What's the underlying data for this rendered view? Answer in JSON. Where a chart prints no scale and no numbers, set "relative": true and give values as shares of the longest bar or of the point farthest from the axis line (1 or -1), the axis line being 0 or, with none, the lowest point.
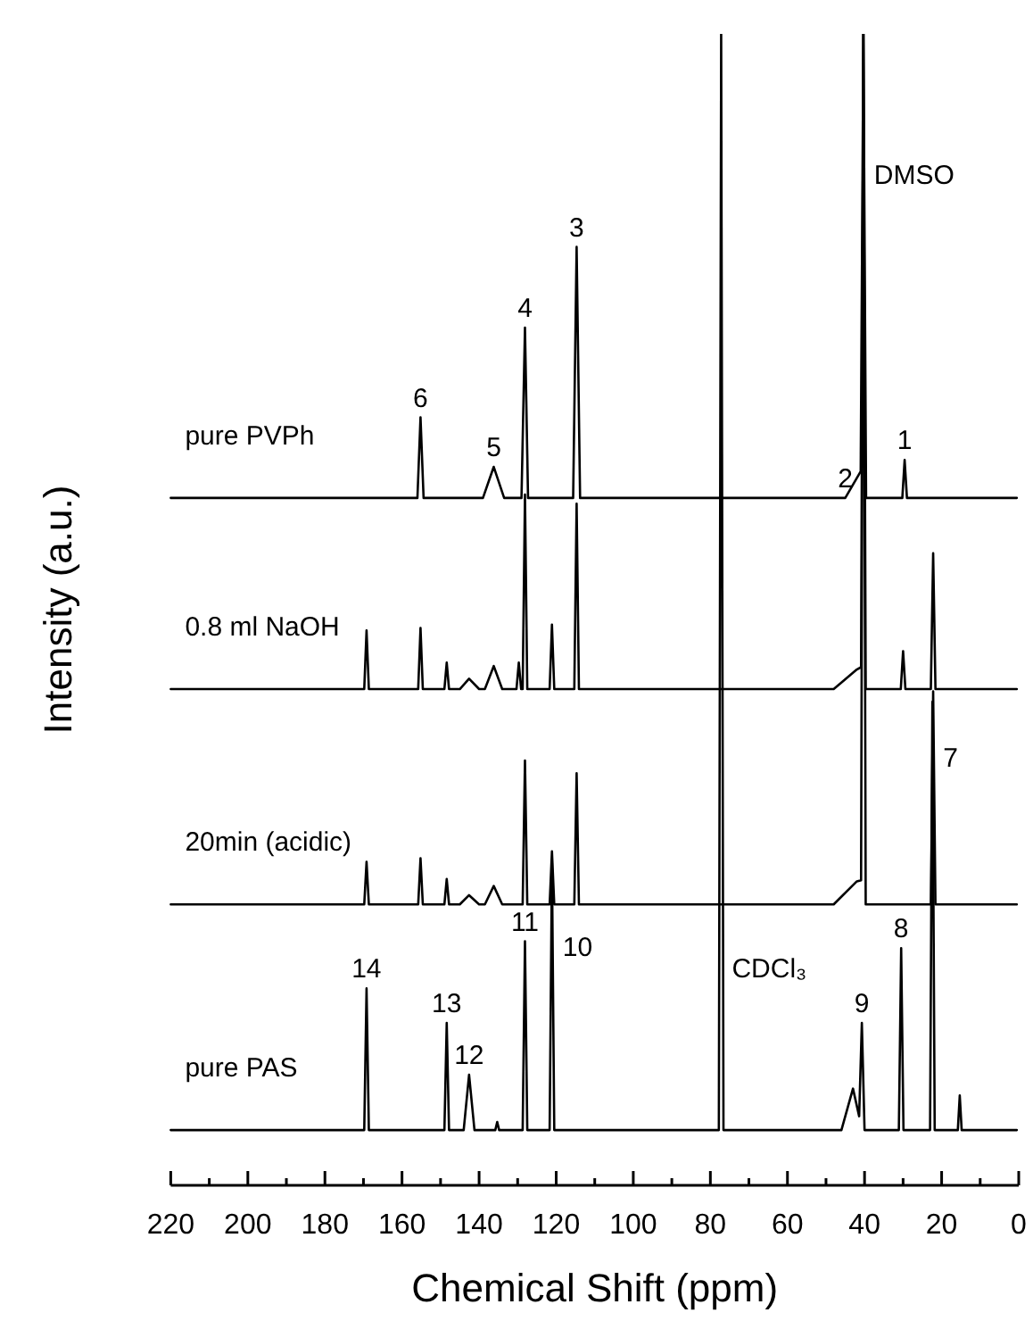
{
  "chart_data": {
    "type": "line",
    "relative": true,
    "xlabel": "Chemical Shift (ppm)",
    "ylabel": "Intensity (a.u.)",
    "xlim": [
      220,
      0
    ],
    "xticks": [
      220,
      {
        "value": 210,
        "label": null
      },
      200,
      {
        "value": 190,
        "label": null
      },
      180,
      {
        "value": 170,
        "label": null
      },
      160,
      {
        "value": 150,
        "label": null
      },
      140,
      {
        "value": 130,
        "label": null
      },
      120,
      {
        "value": 110,
        "label": null
      },
      100,
      {
        "value": 90,
        "label": null
      },
      80,
      {
        "value": 70,
        "label": null
      },
      60,
      {
        "value": 50,
        "label": null
      },
      40,
      {
        "value": 30,
        "label": null
      },
      20,
      {
        "value": 10,
        "label": null
      },
      0
    ],
    "tick_labels": "x",
    "series": [
      {
        "name": "pure PVPh",
        "color": "#000000",
        "x": [
          220,
          156,
          155.2,
          154.4,
          139,
          136.2,
          133.5,
          129,
          128.1,
          127.3,
          115.6,
          114.7,
          113.8,
          45,
          41,
          40.3,
          39.6,
          30.2,
          29.6,
          29,
          0.5
        ],
        "values": [
          0.597,
          0.597,
          0.667,
          0.597,
          0.597,
          0.624,
          0.597,
          0.597,
          0.745,
          0.597,
          0.597,
          0.815,
          0.597,
          0.597,
          0.62,
          1,
          0.597,
          0.597,
          0.63,
          0.597,
          0.597
        ]
      },
      {
        "name": "0.8 ml NaOH",
        "color": "#000000",
        "x": [
          220,
          169.8,
          169.2,
          168.6,
          155.8,
          155.2,
          154.6,
          149,
          148.4,
          147.8,
          145,
          142.6,
          140,
          138.5,
          136.2,
          134,
          130.3,
          129.7,
          129.1,
          128.7,
          128.1,
          127.5,
          121.7,
          121.1,
          120.5,
          115.3,
          114.7,
          114.1,
          48,
          42,
          40.9,
          40.3,
          39.7,
          30.6,
          30,
          29.4,
          22.8,
          22.2,
          21.6,
          0.5
        ],
        "values": [
          0.431,
          0.431,
          0.482,
          0.431,
          0.431,
          0.484,
          0.431,
          0.431,
          0.454,
          0.431,
          0.431,
          0.44,
          0.431,
          0.431,
          0.451,
          0.431,
          0.431,
          0.454,
          0.431,
          0.431,
          0.6,
          0.431,
          0.431,
          0.487,
          0.431,
          0.431,
          0.592,
          0.431,
          0.431,
          0.448,
          0.45,
          1,
          0.431,
          0.431,
          0.464,
          0.431,
          0.431,
          0.549,
          0.431,
          0.431
        ]
      },
      {
        "name": "20min (acidic)",
        "color": "#000000",
        "x": [
          220,
          169.8,
          169.2,
          168.6,
          155.8,
          155.2,
          154.6,
          149,
          148.4,
          147.8,
          145,
          142.6,
          140,
          138.5,
          136.2,
          134,
          128.7,
          128.1,
          127.5,
          121.7,
          121.1,
          120.5,
          115.3,
          114.7,
          114.1,
          48,
          42,
          40.9,
          40.3,
          39.7,
          22.8,
          22.2,
          21.6,
          0.5
        ],
        "values": [
          0.244,
          0.244,
          0.281,
          0.244,
          0.244,
          0.284,
          0.244,
          0.244,
          0.266,
          0.244,
          0.244,
          0.252,
          0.244,
          0.244,
          0.26,
          0.244,
          0.244,
          0.369,
          0.244,
          0.244,
          0.29,
          0.244,
          0.244,
          0.358,
          0.244,
          0.244,
          0.264,
          0.265,
          1,
          0.244,
          0.244,
          0.429,
          0.244,
          0.244
        ]
      },
      {
        "name": "pure PAS",
        "color": "#000000",
        "x": [
          220,
          169.8,
          169.2,
          168.6,
          149,
          148.4,
          147.8,
          144,
          142.6,
          141.2,
          135.8,
          135.3,
          134.8,
          128.7,
          128.1,
          127.5,
          121.7,
          121.1,
          120.5,
          77.8,
          77.2,
          76.6,
          46,
          43,
          41.4,
          40.7,
          40,
          31.1,
          30.5,
          29.9,
          23,
          22.4,
          21.8,
          15.8,
          15.3,
          14.8,
          0.5
        ],
        "values": [
          0.048,
          0.048,
          0.171,
          0.048,
          0.048,
          0.141,
          0.048,
          0.048,
          0.096,
          0.048,
          0.048,
          0.055,
          0.048,
          0.048,
          0.212,
          0.048,
          0.048,
          0.28,
          0.048,
          0.048,
          1,
          0.048,
          0.048,
          0.084,
          0.06,
          0.141,
          0.048,
          0.048,
          0.206,
          0.048,
          0.048,
          0.42,
          0.048,
          0.048,
          0.078,
          0.048,
          0.048
        ]
      }
    ],
    "annotations": [
      {
        "text": "6",
        "x": 155.2,
        "y": 0.667
      },
      {
        "text": "5",
        "x": 136.2,
        "y": 0.624
      },
      {
        "text": "4",
        "x": 128.1,
        "y": 0.745
      },
      {
        "text": "3",
        "x": 114.7,
        "y": 0.815
      },
      {
        "text": "2",
        "x": 45,
        "y": 0.597
      },
      {
        "text": "1",
        "x": 29.6,
        "y": 0.63
      },
      {
        "text": "DMSO",
        "x": 40.3,
        "y": 0.876
      },
      {
        "text": "14",
        "x": 169.2,
        "y": 0.171
      },
      {
        "text": "13",
        "x": 148.4,
        "y": 0.141
      },
      {
        "text": "12",
        "x": 142.6,
        "y": 0.096
      },
      {
        "text": "11",
        "x": 128.1,
        "y": 0.212
      },
      {
        "text": "10",
        "x": 121.1,
        "y": 0.205
      },
      {
        "text": "CDCl₃",
        "x": 77.2,
        "y": 0.187
      },
      {
        "text": "9",
        "x": 40.7,
        "y": 0.141
      },
      {
        "text": "8",
        "x": 30.5,
        "y": 0.206
      },
      {
        "text": "7",
        "x": 22.4,
        "y": 0.37
      }
    ]
  }
}
